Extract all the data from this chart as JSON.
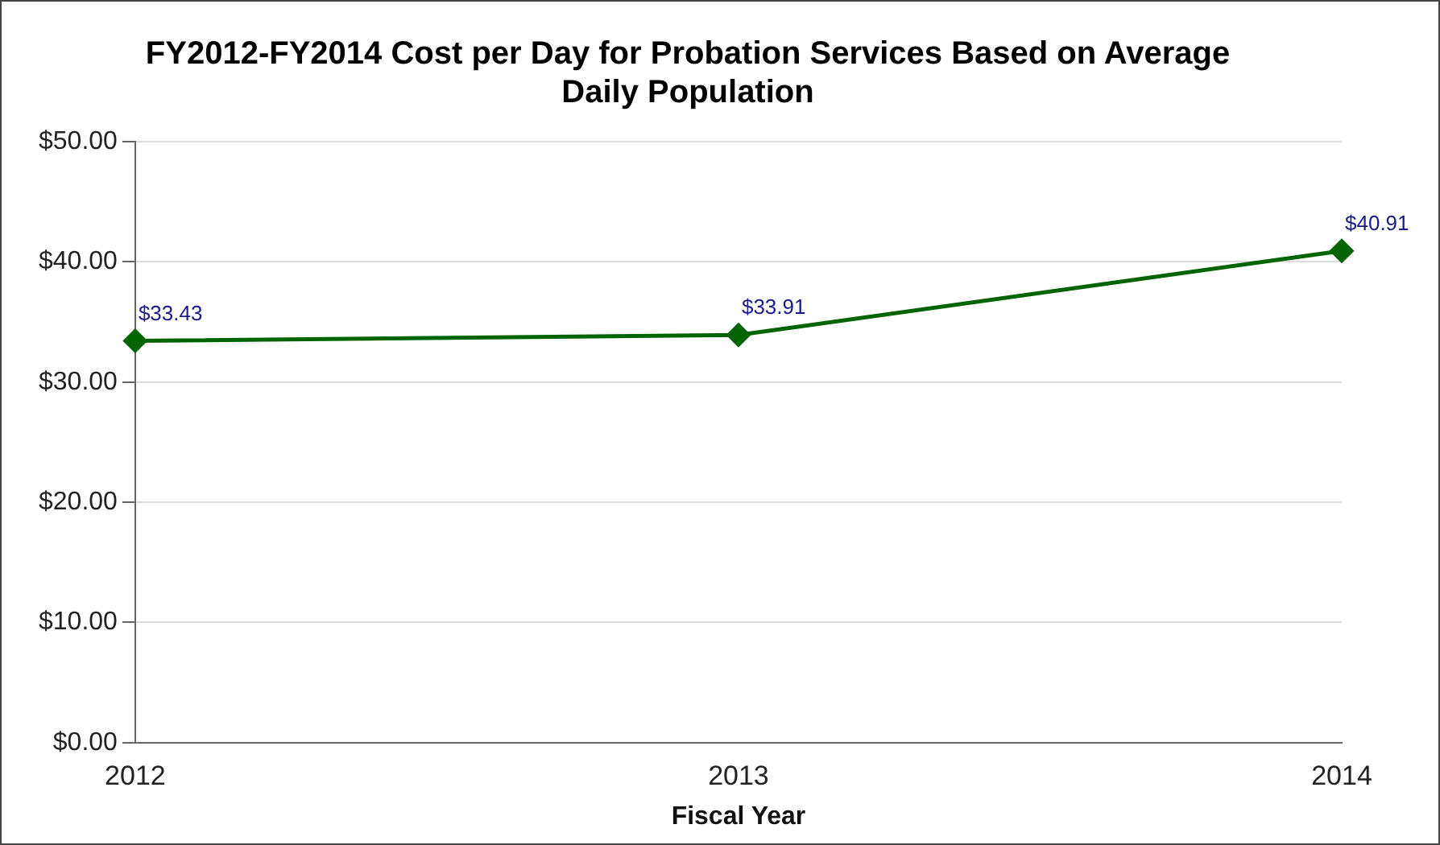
{
  "chart_data": {
    "type": "line",
    "title": "FY2012-FY2014 Cost per Day for Probation Services Based on Average Daily Population",
    "xlabel": "Fiscal Year",
    "x": [
      2012,
      2013,
      2014
    ],
    "series": [
      {
        "color": "#006400",
        "values": [
          33.43,
          33.91,
          40.91
        ],
        "value_labels": [
          "$33.43",
          "$33.91",
          "$40.91"
        ]
      }
    ],
    "xlim": [
      2012,
      2014
    ],
    "xticks": [
      2012,
      2013,
      2014
    ],
    "ylim": [
      0,
      50
    ],
    "yticks": [
      {
        "value": 0,
        "label": "$0.00"
      },
      {
        "value": 10,
        "label": "$10.00"
      },
      {
        "value": 20,
        "label": "$20.00"
      },
      {
        "value": 30,
        "label": "$30.00"
      },
      {
        "value": 40,
        "label": "$40.00"
      },
      {
        "value": 50,
        "label": "$50.00"
      }
    ],
    "grid": "y",
    "legend": false,
    "marker": "diamond",
    "line_style": "solid"
  }
}
